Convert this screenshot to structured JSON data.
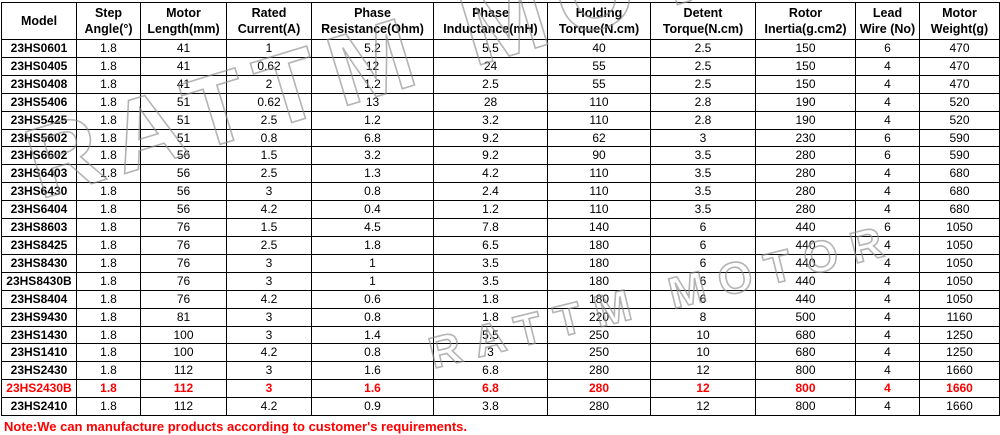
{
  "watermark": "RATTM MOTOR",
  "note": "Note:We can manufacture products according to customer's requirements.",
  "colors": {
    "highlight_text": "#ff0000",
    "note_text": "#ff0000",
    "border": "#000000"
  },
  "table": {
    "headers": [
      [
        "Model"
      ],
      [
        "Step",
        "Angle(°)"
      ],
      [
        "Motor",
        "Length(mm)"
      ],
      [
        "Rated",
        "Current(A)"
      ],
      [
        "Phase",
        "Resistance(Ohm)"
      ],
      [
        "Phase",
        "Inductance(mH)"
      ],
      [
        "Holding",
        "Torque(N.cm)"
      ],
      [
        "Detent",
        "Torque(N.cm)"
      ],
      [
        "Rotor",
        "Inertia(g.cm2)"
      ],
      [
        "Lead",
        "Wire (No)"
      ],
      [
        "Motor",
        "Weight(g)"
      ]
    ],
    "highlight_row_index": 19,
    "rows": [
      [
        "23HS0601",
        "1.8",
        "41",
        "1",
        "5.2",
        "5.5",
        "40",
        "2.5",
        "150",
        "6",
        "470"
      ],
      [
        "23HS0405",
        "1.8",
        "41",
        "0.62",
        "12",
        "24",
        "55",
        "2.5",
        "150",
        "4",
        "470"
      ],
      [
        "23HS0408",
        "1.8",
        "41",
        "2",
        "1.2",
        "2.5",
        "55",
        "2.5",
        "150",
        "4",
        "470"
      ],
      [
        "23HS5406",
        "1.8",
        "51",
        "0.62",
        "13",
        "28",
        "110",
        "2.8",
        "190",
        "4",
        "520"
      ],
      [
        "23HS5425",
        "1.8",
        "51",
        "2.5",
        "1.2",
        "3.2",
        "110",
        "2.8",
        "190",
        "4",
        "520"
      ],
      [
        "23HS5602",
        "1.8",
        "51",
        "0.8",
        "6.8",
        "9.2",
        "62",
        "3",
        "230",
        "6",
        "590"
      ],
      [
        "23HS6602",
        "1.8",
        "56",
        "1.5",
        "3.2",
        "9.2",
        "90",
        "3.5",
        "280",
        "6",
        "590"
      ],
      [
        "23HS6403",
        "1.8",
        "56",
        "2.5",
        "1.3",
        "4.2",
        "110",
        "3.5",
        "280",
        "4",
        "680"
      ],
      [
        "23HS6430",
        "1.8",
        "56",
        "3",
        "0.8",
        "2.4",
        "110",
        "3.5",
        "280",
        "4",
        "680"
      ],
      [
        "23HS6404",
        "1.8",
        "56",
        "4.2",
        "0.4",
        "1.2",
        "110",
        "3.5",
        "280",
        "4",
        "680"
      ],
      [
        "23HS8603",
        "1.8",
        "76",
        "1.5",
        "4.5",
        "7.8",
        "140",
        "6",
        "440",
        "6",
        "1050"
      ],
      [
        "23HS8425",
        "1.8",
        "76",
        "2.5",
        "1.8",
        "6.5",
        "180",
        "6",
        "440",
        "4",
        "1050"
      ],
      [
        "23HS8430",
        "1.8",
        "76",
        "3",
        "1",
        "3.5",
        "180",
        "6",
        "440",
        "4",
        "1050"
      ],
      [
        "23HS8430B",
        "1.8",
        "76",
        "3",
        "1",
        "3.5",
        "180",
        "6",
        "440",
        "4",
        "1050"
      ],
      [
        "23HS8404",
        "1.8",
        "76",
        "4.2",
        "0.6",
        "1.8",
        "180",
        "6",
        "440",
        "4",
        "1050"
      ],
      [
        "23HS9430",
        "1.8",
        "81",
        "3",
        "0.8",
        "1.8",
        "220",
        "8",
        "500",
        "4",
        "1160"
      ],
      [
        "23HS1430",
        "1.8",
        "100",
        "3",
        "1.4",
        "5.5",
        "250",
        "10",
        "680",
        "4",
        "1250"
      ],
      [
        "23HS1410",
        "1.8",
        "100",
        "4.2",
        "0.8",
        "3",
        "250",
        "10",
        "680",
        "4",
        "1250"
      ],
      [
        "23HS2430",
        "1.8",
        "112",
        "3",
        "1.6",
        "6.8",
        "280",
        "12",
        "800",
        "4",
        "1660"
      ],
      [
        "23HS2430B",
        "1.8",
        "112",
        "3",
        "1.6",
        "6.8",
        "280",
        "12",
        "800",
        "4",
        "1660"
      ],
      [
        "23HS2410",
        "1.8",
        "112",
        "4.2",
        "0.9",
        "3.8",
        "280",
        "12",
        "800",
        "4",
        "1660"
      ]
    ]
  }
}
